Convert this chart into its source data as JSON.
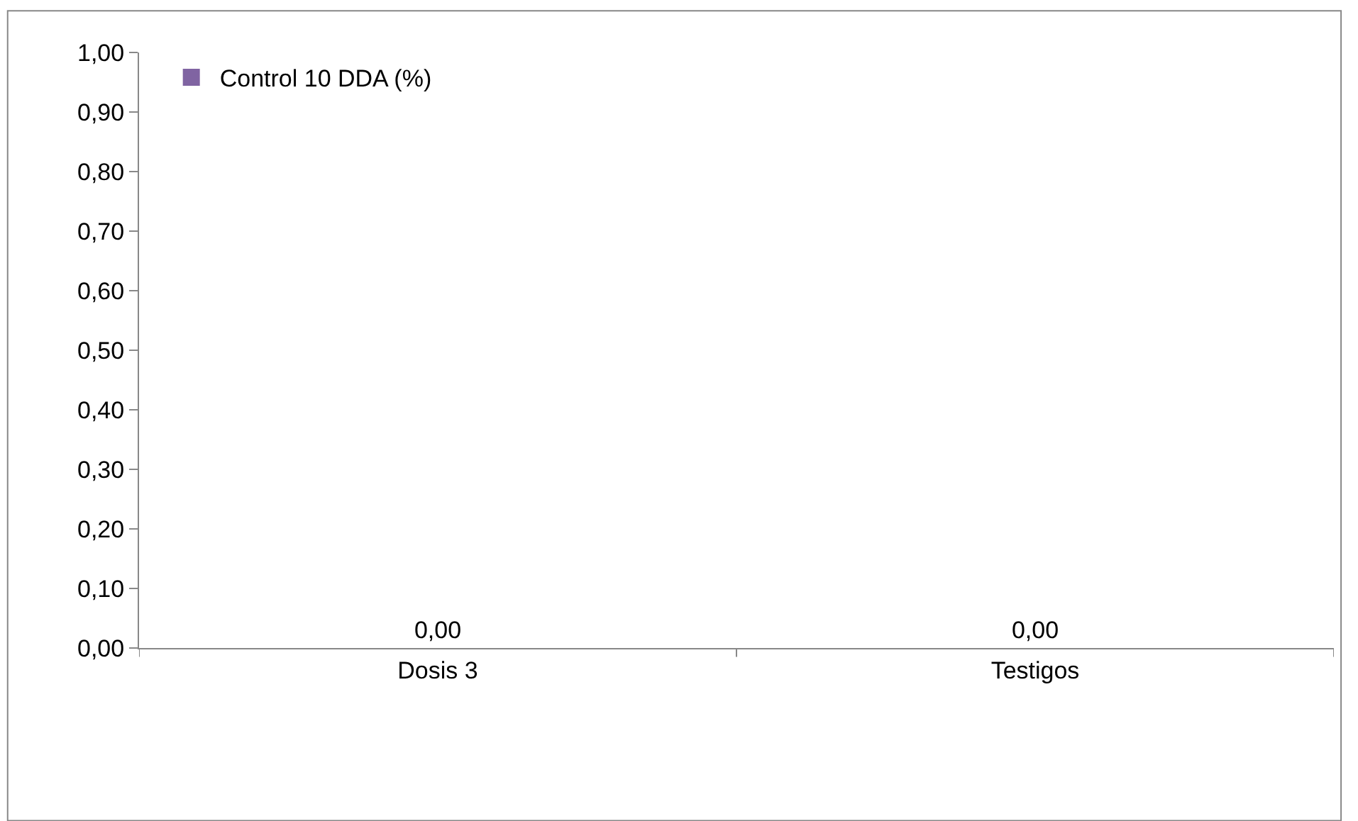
{
  "chart_data": {
    "type": "bar",
    "categories": [
      "Dosis 3",
      "Testigos"
    ],
    "series": [
      {
        "name": "Control 10 DDA (%)",
        "color": "#8064a2",
        "values": [
          0,
          0
        ],
        "value_labels": [
          "0,00",
          "0,00"
        ]
      }
    ],
    "ylim": [
      0,
      1
    ],
    "yticks": [
      {
        "value": 0,
        "label": "0,00"
      },
      {
        "value": 0.1,
        "label": "0,10"
      },
      {
        "value": 0.2,
        "label": "0,20"
      },
      {
        "value": 0.3,
        "label": "0,30"
      },
      {
        "value": 0.4,
        "label": "0,40"
      },
      {
        "value": 0.5,
        "label": "0,50"
      },
      {
        "value": 0.6,
        "label": "0,60"
      },
      {
        "value": 0.7,
        "label": "0,70"
      },
      {
        "value": 0.8,
        "label": "0,80"
      },
      {
        "value": 0.9,
        "label": "0,90"
      },
      {
        "value": 1,
        "label": "1,00"
      }
    ],
    "grid": false,
    "legend": "top left"
  }
}
